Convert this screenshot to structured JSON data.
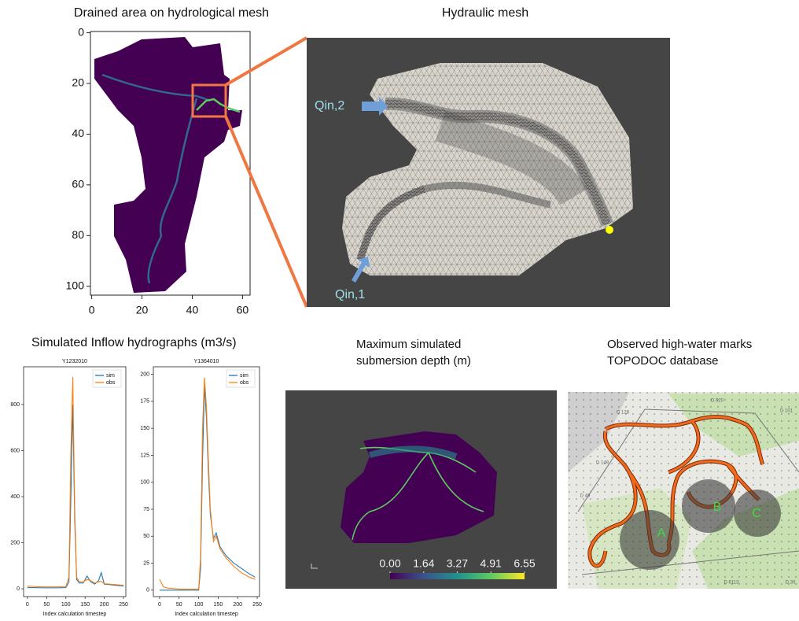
{
  "chart_data": [
    {
      "type": "image",
      "title": "Drained area on hydrological mesh",
      "xlim": [
        -0.5,
        63
      ],
      "ylim": [
        103.5,
        -0.5
      ],
      "xticks": [
        0,
        20,
        40,
        60
      ],
      "yticks": [
        0,
        20,
        40,
        60,
        80,
        100
      ]
    },
    {
      "type": "line",
      "title": "Y1232010",
      "xlabel": "Index calculation timestep",
      "x": [
        0,
        20,
        40,
        60,
        80,
        100,
        108,
        113,
        118,
        123,
        128,
        135,
        145,
        155,
        165,
        175,
        185,
        192,
        200,
        215,
        230,
        250
      ],
      "series": [
        {
          "name": "sim",
          "color": "#1f77b4",
          "values": [
            5,
            5,
            4,
            4,
            4,
            5,
            30,
            400,
            800,
            300,
            40,
            25,
            25,
            55,
            30,
            20,
            35,
            70,
            20,
            18,
            15,
            12
          ]
        },
        {
          "name": "obs",
          "color": "#ff7f0e",
          "values": [
            12,
            10,
            8,
            8,
            8,
            10,
            50,
            600,
            920,
            350,
            50,
            30,
            30,
            40,
            35,
            25,
            30,
            32,
            22,
            20,
            18,
            15
          ]
        }
      ],
      "xlim": [
        -10,
        256
      ],
      "ylim": [
        -34,
        964
      ],
      "xticks": [
        0,
        50,
        100,
        150,
        200,
        250
      ],
      "yticks": [
        0,
        200,
        400,
        600,
        800
      ],
      "legend": "upper right"
    },
    {
      "type": "line",
      "title": "Y1364010",
      "xlabel": "Index calculation timestep",
      "x": [
        0,
        10,
        20,
        50,
        80,
        100,
        105,
        110,
        115,
        120,
        125,
        130,
        138,
        145,
        155,
        170,
        190,
        210,
        230,
        245
      ],
      "series": [
        {
          "name": "sim",
          "color": "#1f77b4",
          "values": [
            0,
            0,
            0,
            0,
            0,
            0,
            20,
            120,
            190,
            160,
            110,
            70,
            48,
            53,
            40,
            32,
            25,
            20,
            15,
            12
          ]
        },
        {
          "name": "obs",
          "color": "#ff7f0e",
          "values": [
            10,
            3,
            2,
            1,
            1,
            1,
            30,
            150,
            197,
            170,
            120,
            75,
            45,
            50,
            38,
            30,
            22,
            16,
            12,
            10
          ]
        }
      ],
      "xlim": [
        -16,
        256
      ],
      "ylim": [
        -6,
        207
      ],
      "xticks": [
        0,
        50,
        100,
        150,
        200,
        250
      ],
      "yticks": [
        0,
        25,
        50,
        75,
        100,
        125,
        150,
        175,
        200
      ],
      "legend": "upper right"
    },
    {
      "type": "colorbar",
      "title": [
        "Maximum simulated",
        "submersion depth (m)"
      ],
      "xlim": [
        0,
        6.55
      ],
      "xticks": [
        {
          "value": 0,
          "label": "0.00"
        },
        1.64,
        3.27,
        4.91,
        6.55
      ]
    }
  ],
  "hydraulic_mesh": {
    "title": "Hydraulic mesh",
    "labels": [
      "Qin,2",
      "Qin,1"
    ]
  },
  "hydrographs": {
    "title": "Simulated Inflow hydrographs (m3/s)"
  },
  "high_water_marks": {
    "title": [
      "Observed high-water marks",
      "TOPODOC database"
    ],
    "zones": [
      "A",
      "B",
      "C"
    ],
    "roads": [
      "D 620",
      "D 101",
      "D 128",
      "D 149",
      "D 49",
      "D 6113",
      "D 30"
    ]
  }
}
